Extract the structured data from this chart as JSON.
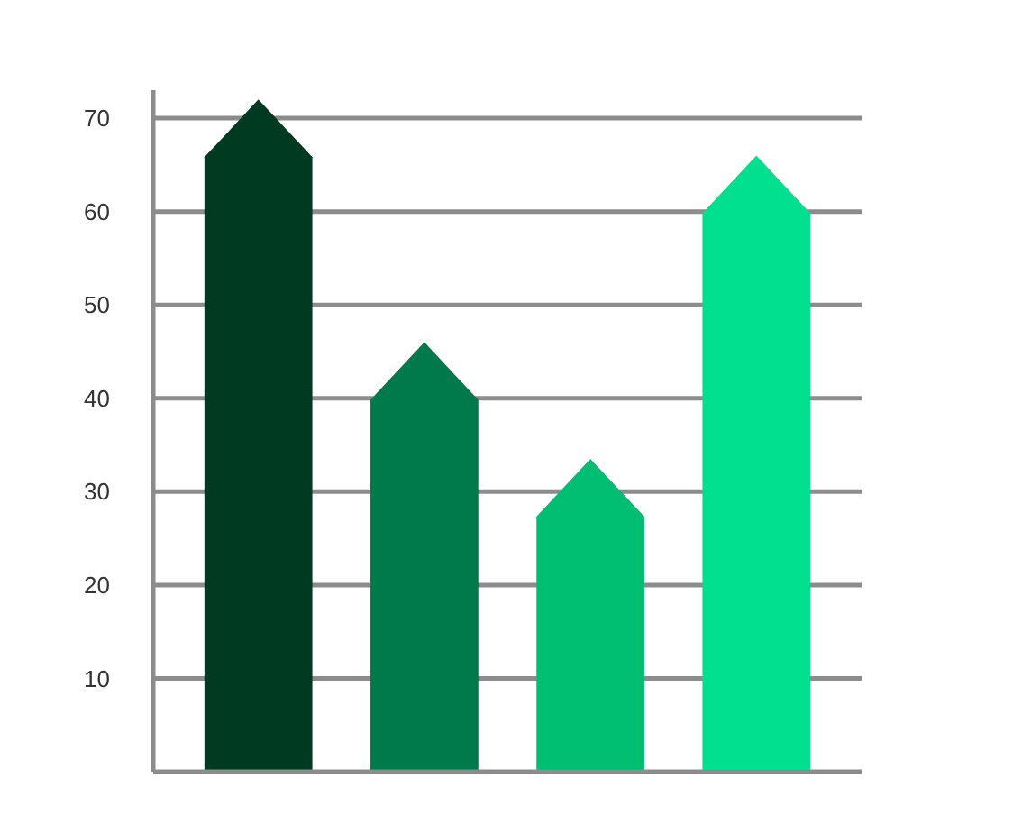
{
  "chart_data": {
    "type": "bar",
    "categories": [
      null,
      null,
      null,
      null
    ],
    "values": [
      72,
      46,
      33.5,
      66
    ],
    "colors": [
      "#003a20",
      "#007a4a",
      "#00bf73",
      "#00e08e"
    ],
    "ylim": [
      0,
      73
    ],
    "yticks": [
      10,
      20,
      30,
      40,
      50,
      60,
      70
    ],
    "grid": "y",
    "tick_labels": "y"
  }
}
